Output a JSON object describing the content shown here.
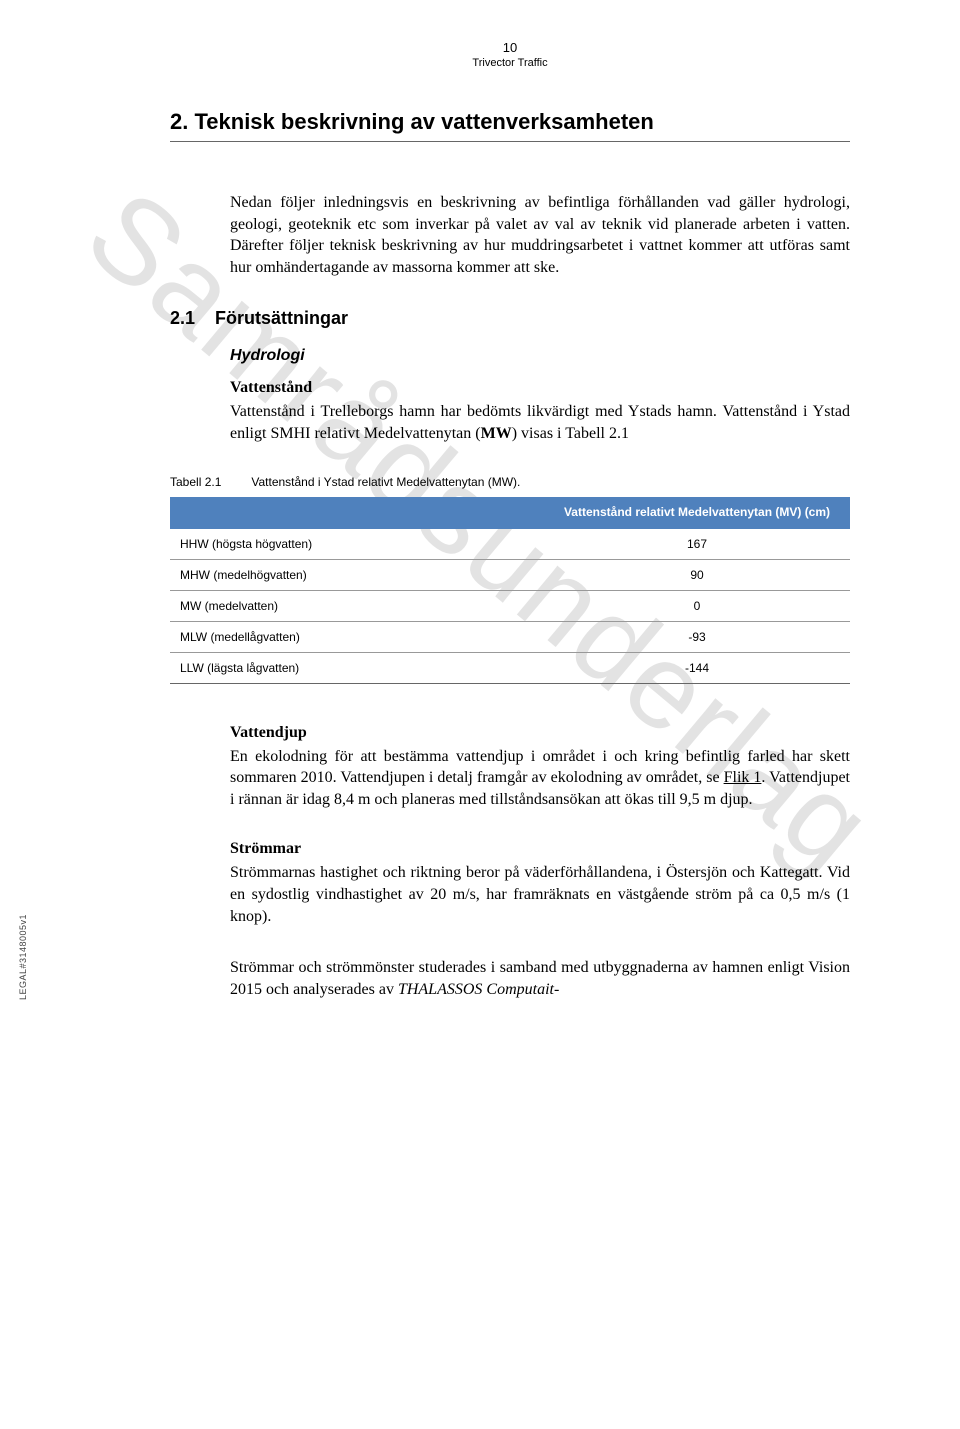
{
  "page_number": "10",
  "header_sub": "Trivector Traffic",
  "watermark": "Samrådsunderlag",
  "side_label": "LEGAL#3148005v1",
  "section": {
    "number": "2.",
    "title": "Teknisk beskrivning av vattenverksamheten"
  },
  "intro_para": "Nedan följer inledningsvis en beskrivning av befintliga förhållanden vad gäller hydrologi, geologi, geoteknik etc som inverkar på valet av val av teknik vid planerade arbeten i vatten. Därefter följer teknisk beskrivning av hur muddringsarbetet i vattnet kommer att utföras samt hur omhändertagande av massorna kommer att ske.",
  "subsection": {
    "number": "2.1",
    "title": "Förutsättningar"
  },
  "hydrologi": {
    "heading": "Hydrologi",
    "vattenstand": {
      "heading": "Vattenstånd",
      "para_a": "Vattenstånd i Trelleborgs hamn har bedömts likvärdigt med Ystads hamn. Vattenstånd i Ystad enligt SMHI relativt Medelvattenytan (",
      "mw_bold": "MW",
      "para_b": ") visas i Tabell 2.1"
    }
  },
  "table": {
    "label": "Tabell 2.1",
    "caption": "Vattenstånd i Ystad relativt Medelvattenytan (MW).",
    "header_col1": "",
    "header_col2": "Vattenstånd relativt Medelvattenytan (MV) (cm)",
    "rows": [
      {
        "label": "HHW (högsta högvatten)",
        "value": "167"
      },
      {
        "label": "MHW (medelhögvatten)",
        "value": "90"
      },
      {
        "label": "MW (medelvatten)",
        "value": "0"
      },
      {
        "label": "MLW (medellågvatten)",
        "value": "-93"
      },
      {
        "label": "LLW (lägsta lågvatten)",
        "value": "-144"
      }
    ]
  },
  "vattendjup": {
    "heading": "Vattendjup",
    "para_a": "En ekolodning för att bestämma vattendjup i området i och kring befintlig farled har skett sommaren 2010. Vattendjupen i detalj framgår av ekolodning av området, se ",
    "link": "Flik 1",
    "para_b": ". Vattendjupet i rännan är idag 8,4 m och planeras med tillståndsansökan att ökas till 9,5 m djup."
  },
  "strommar": {
    "heading": "Strömmar",
    "para1": "Strömmarnas hastighet och riktning beror på väderförhållandena, i Östersjön och Kattegatt. Vid en sydostlig vindhastighet av 20 m/s, har framräknats en västgående ström på ca 0,5 m/s (1 knop).",
    "para2_a": "Strömmar och strömmönster studerades i samband med utbyggnaderna av hamnen enligt Vision 2015 och analyserades av ",
    "para2_italic": "THALASSOS Computait-"
  },
  "colors": {
    "table_header_bg": "#4f81bd",
    "table_header_fg": "#ffffff",
    "watermark_color": "rgba(200,200,200,0.5)",
    "hr_color": "#666666",
    "row_border": "#999999"
  }
}
